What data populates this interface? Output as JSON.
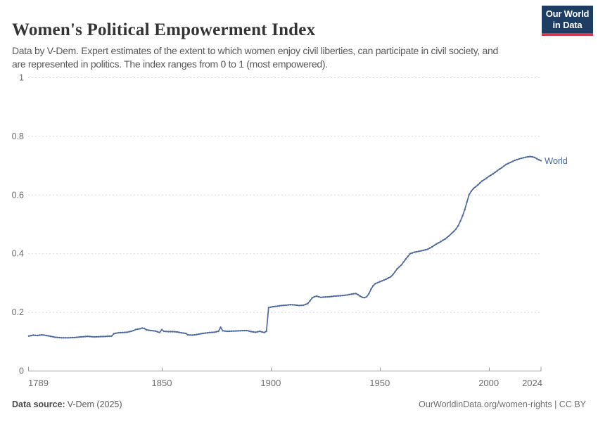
{
  "logo": {
    "line1": "Our World",
    "line2": "in Data",
    "bg_color": "#1d3d63",
    "accent_color": "#d13b4d"
  },
  "chart_data": {
    "type": "line",
    "title": "Women's Political Empowerment Index",
    "subtitle": "Data by V-Dem. Expert estimates of the extent to which women enjoy civil liberties, can participate in civil society, and are represented in politics. The index ranges from 0 to 1 (most empowered).",
    "xlabel": "",
    "ylabel": "",
    "x_range": [
      1789,
      2024
    ],
    "ylim": [
      0,
      1
    ],
    "y_ticks": [
      0,
      0.2,
      0.4,
      0.6,
      0.8,
      1
    ],
    "y_tick_labels": [
      "0",
      "0.2",
      "0.4",
      "0.6",
      "0.8",
      "1"
    ],
    "x_ticks": [
      1789,
      1850,
      1900,
      1950,
      2000,
      2024
    ],
    "x_tick_labels": [
      "1789",
      "1850",
      "1900",
      "1950",
      "2000",
      "2024"
    ],
    "grid": "horizontal-dashed",
    "legend_position": "end-of-line",
    "colors": {
      "grid": "#dcdcdc",
      "axis": "#9b9b9b",
      "tick_text": "#6c6c6c"
    },
    "series": [
      {
        "name": "World",
        "color": "#4c6a9c",
        "points": [
          [
            1789,
            0.118
          ],
          [
            1791,
            0.121
          ],
          [
            1793,
            0.12
          ],
          [
            1795,
            0.122
          ],
          [
            1797,
            0.12
          ],
          [
            1799,
            0.117
          ],
          [
            1801,
            0.114
          ],
          [
            1804,
            0.112
          ],
          [
            1807,
            0.112
          ],
          [
            1810,
            0.113
          ],
          [
            1813,
            0.115
          ],
          [
            1816,
            0.117
          ],
          [
            1819,
            0.115
          ],
          [
            1822,
            0.116
          ],
          [
            1825,
            0.117
          ],
          [
            1827,
            0.118
          ],
          [
            1828,
            0.126
          ],
          [
            1830,
            0.129
          ],
          [
            1832,
            0.13
          ],
          [
            1834,
            0.131
          ],
          [
            1836,
            0.134
          ],
          [
            1838,
            0.14
          ],
          [
            1840,
            0.143
          ],
          [
            1841,
            0.145
          ],
          [
            1842,
            0.144
          ],
          [
            1843,
            0.139
          ],
          [
            1845,
            0.137
          ],
          [
            1847,
            0.135
          ],
          [
            1849,
            0.13
          ],
          [
            1850,
            0.14
          ],
          [
            1851,
            0.134
          ],
          [
            1853,
            0.133
          ],
          [
            1855,
            0.133
          ],
          [
            1857,
            0.132
          ],
          [
            1859,
            0.129
          ],
          [
            1861,
            0.127
          ],
          [
            1862,
            0.122
          ],
          [
            1864,
            0.121
          ],
          [
            1866,
            0.123
          ],
          [
            1868,
            0.126
          ],
          [
            1870,
            0.128
          ],
          [
            1872,
            0.13
          ],
          [
            1874,
            0.131
          ],
          [
            1876,
            0.134
          ],
          [
            1877,
            0.148
          ],
          [
            1878,
            0.136
          ],
          [
            1880,
            0.134
          ],
          [
            1883,
            0.135
          ],
          [
            1886,
            0.136
          ],
          [
            1889,
            0.137
          ],
          [
            1891,
            0.133
          ],
          [
            1893,
            0.131
          ],
          [
            1895,
            0.134
          ],
          [
            1897,
            0.13
          ],
          [
            1898,
            0.134
          ],
          [
            1899,
            0.215
          ],
          [
            1901,
            0.218
          ],
          [
            1903,
            0.22
          ],
          [
            1905,
            0.222
          ],
          [
            1907,
            0.223
          ],
          [
            1909,
            0.225
          ],
          [
            1911,
            0.224
          ],
          [
            1913,
            0.222
          ],
          [
            1915,
            0.223
          ],
          [
            1917,
            0.229
          ],
          [
            1918,
            0.238
          ],
          [
            1919,
            0.248
          ],
          [
            1920,
            0.252
          ],
          [
            1921,
            0.254
          ],
          [
            1923,
            0.25
          ],
          [
            1925,
            0.251
          ],
          [
            1927,
            0.252
          ],
          [
            1929,
            0.254
          ],
          [
            1931,
            0.255
          ],
          [
            1933,
            0.256
          ],
          [
            1935,
            0.258
          ],
          [
            1937,
            0.261
          ],
          [
            1939,
            0.263
          ],
          [
            1940,
            0.259
          ],
          [
            1941,
            0.254
          ],
          [
            1942,
            0.25
          ],
          [
            1943,
            0.249
          ],
          [
            1944,
            0.252
          ],
          [
            1945,
            0.262
          ],
          [
            1946,
            0.278
          ],
          [
            1947,
            0.29
          ],
          [
            1948,
            0.297
          ],
          [
            1950,
            0.303
          ],
          [
            1952,
            0.309
          ],
          [
            1954,
            0.316
          ],
          [
            1955,
            0.32
          ],
          [
            1956,
            0.327
          ],
          [
            1957,
            0.337
          ],
          [
            1958,
            0.347
          ],
          [
            1959,
            0.354
          ],
          [
            1960,
            0.361
          ],
          [
            1961,
            0.371
          ],
          [
            1962,
            0.381
          ],
          [
            1963,
            0.39
          ],
          [
            1964,
            0.399
          ],
          [
            1966,
            0.404
          ],
          [
            1968,
            0.407
          ],
          [
            1970,
            0.41
          ],
          [
            1972,
            0.414
          ],
          [
            1974,
            0.422
          ],
          [
            1976,
            0.432
          ],
          [
            1978,
            0.44
          ],
          [
            1980,
            0.449
          ],
          [
            1982,
            0.461
          ],
          [
            1984,
            0.475
          ],
          [
            1985,
            0.483
          ],
          [
            1986,
            0.494
          ],
          [
            1987,
            0.51
          ],
          [
            1988,
            0.528
          ],
          [
            1989,
            0.549
          ],
          [
            1990,
            0.575
          ],
          [
            1991,
            0.6
          ],
          [
            1992,
            0.612
          ],
          [
            1993,
            0.621
          ],
          [
            1995,
            0.633
          ],
          [
            1997,
            0.647
          ],
          [
            1999,
            0.656
          ],
          [
            2000,
            0.662
          ],
          [
            2002,
            0.671
          ],
          [
            2004,
            0.682
          ],
          [
            2006,
            0.692
          ],
          [
            2008,
            0.703
          ],
          [
            2010,
            0.71
          ],
          [
            2012,
            0.717
          ],
          [
            2014,
            0.722
          ],
          [
            2016,
            0.726
          ],
          [
            2018,
            0.729
          ],
          [
            2019,
            0.73
          ],
          [
            2020,
            0.729
          ],
          [
            2021,
            0.727
          ],
          [
            2022,
            0.723
          ],
          [
            2023,
            0.719
          ],
          [
            2024,
            0.716
          ]
        ]
      }
    ]
  },
  "footer": {
    "datasource_label": "Data source:",
    "datasource_value": "V-Dem (2025)",
    "credit": "OurWorldinData.org/women-rights | CC BY"
  }
}
